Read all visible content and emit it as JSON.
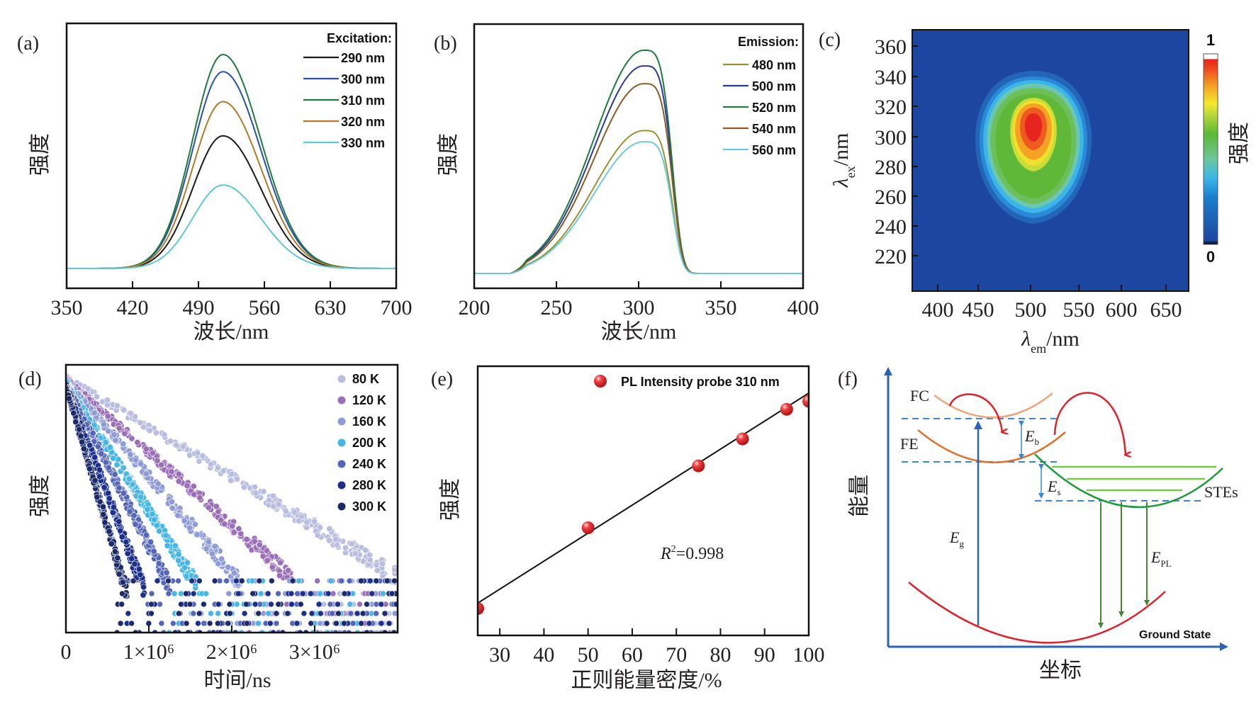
{
  "chart_data": [
    {
      "id": "a",
      "type": "line",
      "panel_label": "(a)",
      "xlabel": "波长/nm",
      "ylabel": "强度",
      "xlim": [
        350,
        700
      ],
      "xticks": [
        350,
        420,
        490,
        560,
        630,
        700
      ],
      "yticks": [],
      "legend_title": "Excitation:",
      "legend_position": "top-right",
      "peak_wavelength": 516,
      "series": [
        {
          "name": "290 nm",
          "color": "#1a1a1a",
          "peak_relative": 0.62
        },
        {
          "name": "300 nm",
          "color": "#2a4fa8",
          "peak_relative": 0.92
        },
        {
          "name": "310 nm",
          "color": "#1f7a3e",
          "peak_relative": 1.0
        },
        {
          "name": "320 nm",
          "color": "#b07a2a",
          "peak_relative": 0.78
        },
        {
          "name": "330 nm",
          "color": "#5fc7d3",
          "peak_relative": 0.39
        }
      ]
    },
    {
      "id": "b",
      "type": "line",
      "panel_label": "(b)",
      "xlabel": "波长/nm",
      "ylabel": "强度",
      "xlim": [
        200,
        400
      ],
      "xticks": [
        200,
        250,
        300,
        350,
        400
      ],
      "yticks": [],
      "legend_title": "Emission:",
      "legend_position": "top-right",
      "peak_wavelength": 303,
      "series": [
        {
          "name": "480 nm",
          "color": "#9a9230",
          "peak_relative": 0.64
        },
        {
          "name": "500 nm",
          "color": "#2a3a9a",
          "peak_relative": 0.93
        },
        {
          "name": "520 nm",
          "color": "#1f7a3e",
          "peak_relative": 1.0
        },
        {
          "name": "540 nm",
          "color": "#8a5a28",
          "peak_relative": 0.85
        },
        {
          "name": "560 nm",
          "color": "#6cc9dc",
          "peak_relative": 0.59
        }
      ]
    },
    {
      "id": "c",
      "type": "heatmap",
      "panel_label": "(c)",
      "xlabel_main": "λ",
      "xlabel_sub": "em",
      "xlabel_unit": "/nm",
      "ylabel_main": "λ",
      "ylabel_sub": "ex",
      "ylabel_unit": "/nm",
      "xticks": [
        400,
        450,
        500,
        550,
        600,
        650
      ],
      "yticks": [
        220,
        240,
        260,
        280,
        300,
        320,
        340,
        360
      ],
      "xlim": [
        380,
        680
      ],
      "ylim": [
        200,
        370
      ],
      "peak": {
        "em": 510,
        "ex": 295
      },
      "colorbar": {
        "label": "强度",
        "min_label": "0",
        "max_label": "1"
      }
    },
    {
      "id": "d",
      "type": "scatter",
      "panel_label": "(d)",
      "xlabel": "时间/ns",
      "ylabel": "强度",
      "xlim": [
        0,
        4000000
      ],
      "xticks": [
        {
          "value": 0,
          "label": "0"
        },
        {
          "value": 1000000,
          "label": "1×10⁶"
        },
        {
          "value": 2000000,
          "label": "2×10⁶"
        },
        {
          "value": 3000000,
          "label": "3×10⁶"
        }
      ],
      "yscale": "log",
      "legend_position": "top-right",
      "series": [
        {
          "name": "80 K",
          "color": "#b9bee0",
          "decay_to_floor_ns": 3800000
        },
        {
          "name": "120 K",
          "color": "#9a6fb8",
          "decay_to_floor_ns": 2600000
        },
        {
          "name": "160 K",
          "color": "#8e9bd6",
          "decay_to_floor_ns": 2000000
        },
        {
          "name": "200 K",
          "color": "#45b6e6",
          "decay_to_floor_ns": 1500000
        },
        {
          "name": "240 K",
          "color": "#5566b8",
          "decay_to_floor_ns": 1200000
        },
        {
          "name": "280 K",
          "color": "#1d2f8c",
          "decay_to_floor_ns": 900000
        },
        {
          "name": "300 K",
          "color": "#1c2a6a",
          "decay_to_floor_ns": 700000
        }
      ]
    },
    {
      "id": "e",
      "type": "scatter",
      "panel_label": "(e)",
      "xlabel": "正则能量密度/%",
      "ylabel": "强度",
      "xlim": [
        25,
        100
      ],
      "ylim": [
        0,
        100
      ],
      "xticks": [
        30,
        40,
        50,
        60,
        70,
        80,
        90,
        100
      ],
      "legend_position": "top-right",
      "legend": "PL Intensity probe 310 nm",
      "annotation_main": "R",
      "annotation_sup": "2",
      "annotation_rest": "=0.998",
      "points_color": "#e8262b",
      "x": [
        25,
        50,
        75,
        85,
        95,
        100
      ],
      "y": [
        10,
        40,
        63,
        73,
        84,
        87
      ],
      "fit": {
        "x": [
          25,
          100
        ],
        "y": [
          12,
          90
        ]
      }
    }
  ],
  "diagram_f": {
    "panel_label": "(f)",
    "ylabel": "能量",
    "xlabel": "坐标",
    "labels": {
      "fc": "FC",
      "fe": "FE",
      "stes": "STEs",
      "ground": "Ground State",
      "eb_main": "E",
      "eb_sub": "b",
      "es_main": "E",
      "es_sub": "s",
      "eg_main": "E",
      "eg_sub": "g",
      "epl_main": "E",
      "epl_sub": "PL"
    },
    "colors": {
      "axis": "#2a62b8",
      "fc": "#eea57a",
      "fe": "#e0702e",
      "ste": "#1f9a3e",
      "ste_levels": "#7ac943",
      "ground": "#e0202a",
      "transfer": "#e0202a",
      "pl": "#3f8a2e",
      "dashed": "#3a86d0"
    }
  }
}
